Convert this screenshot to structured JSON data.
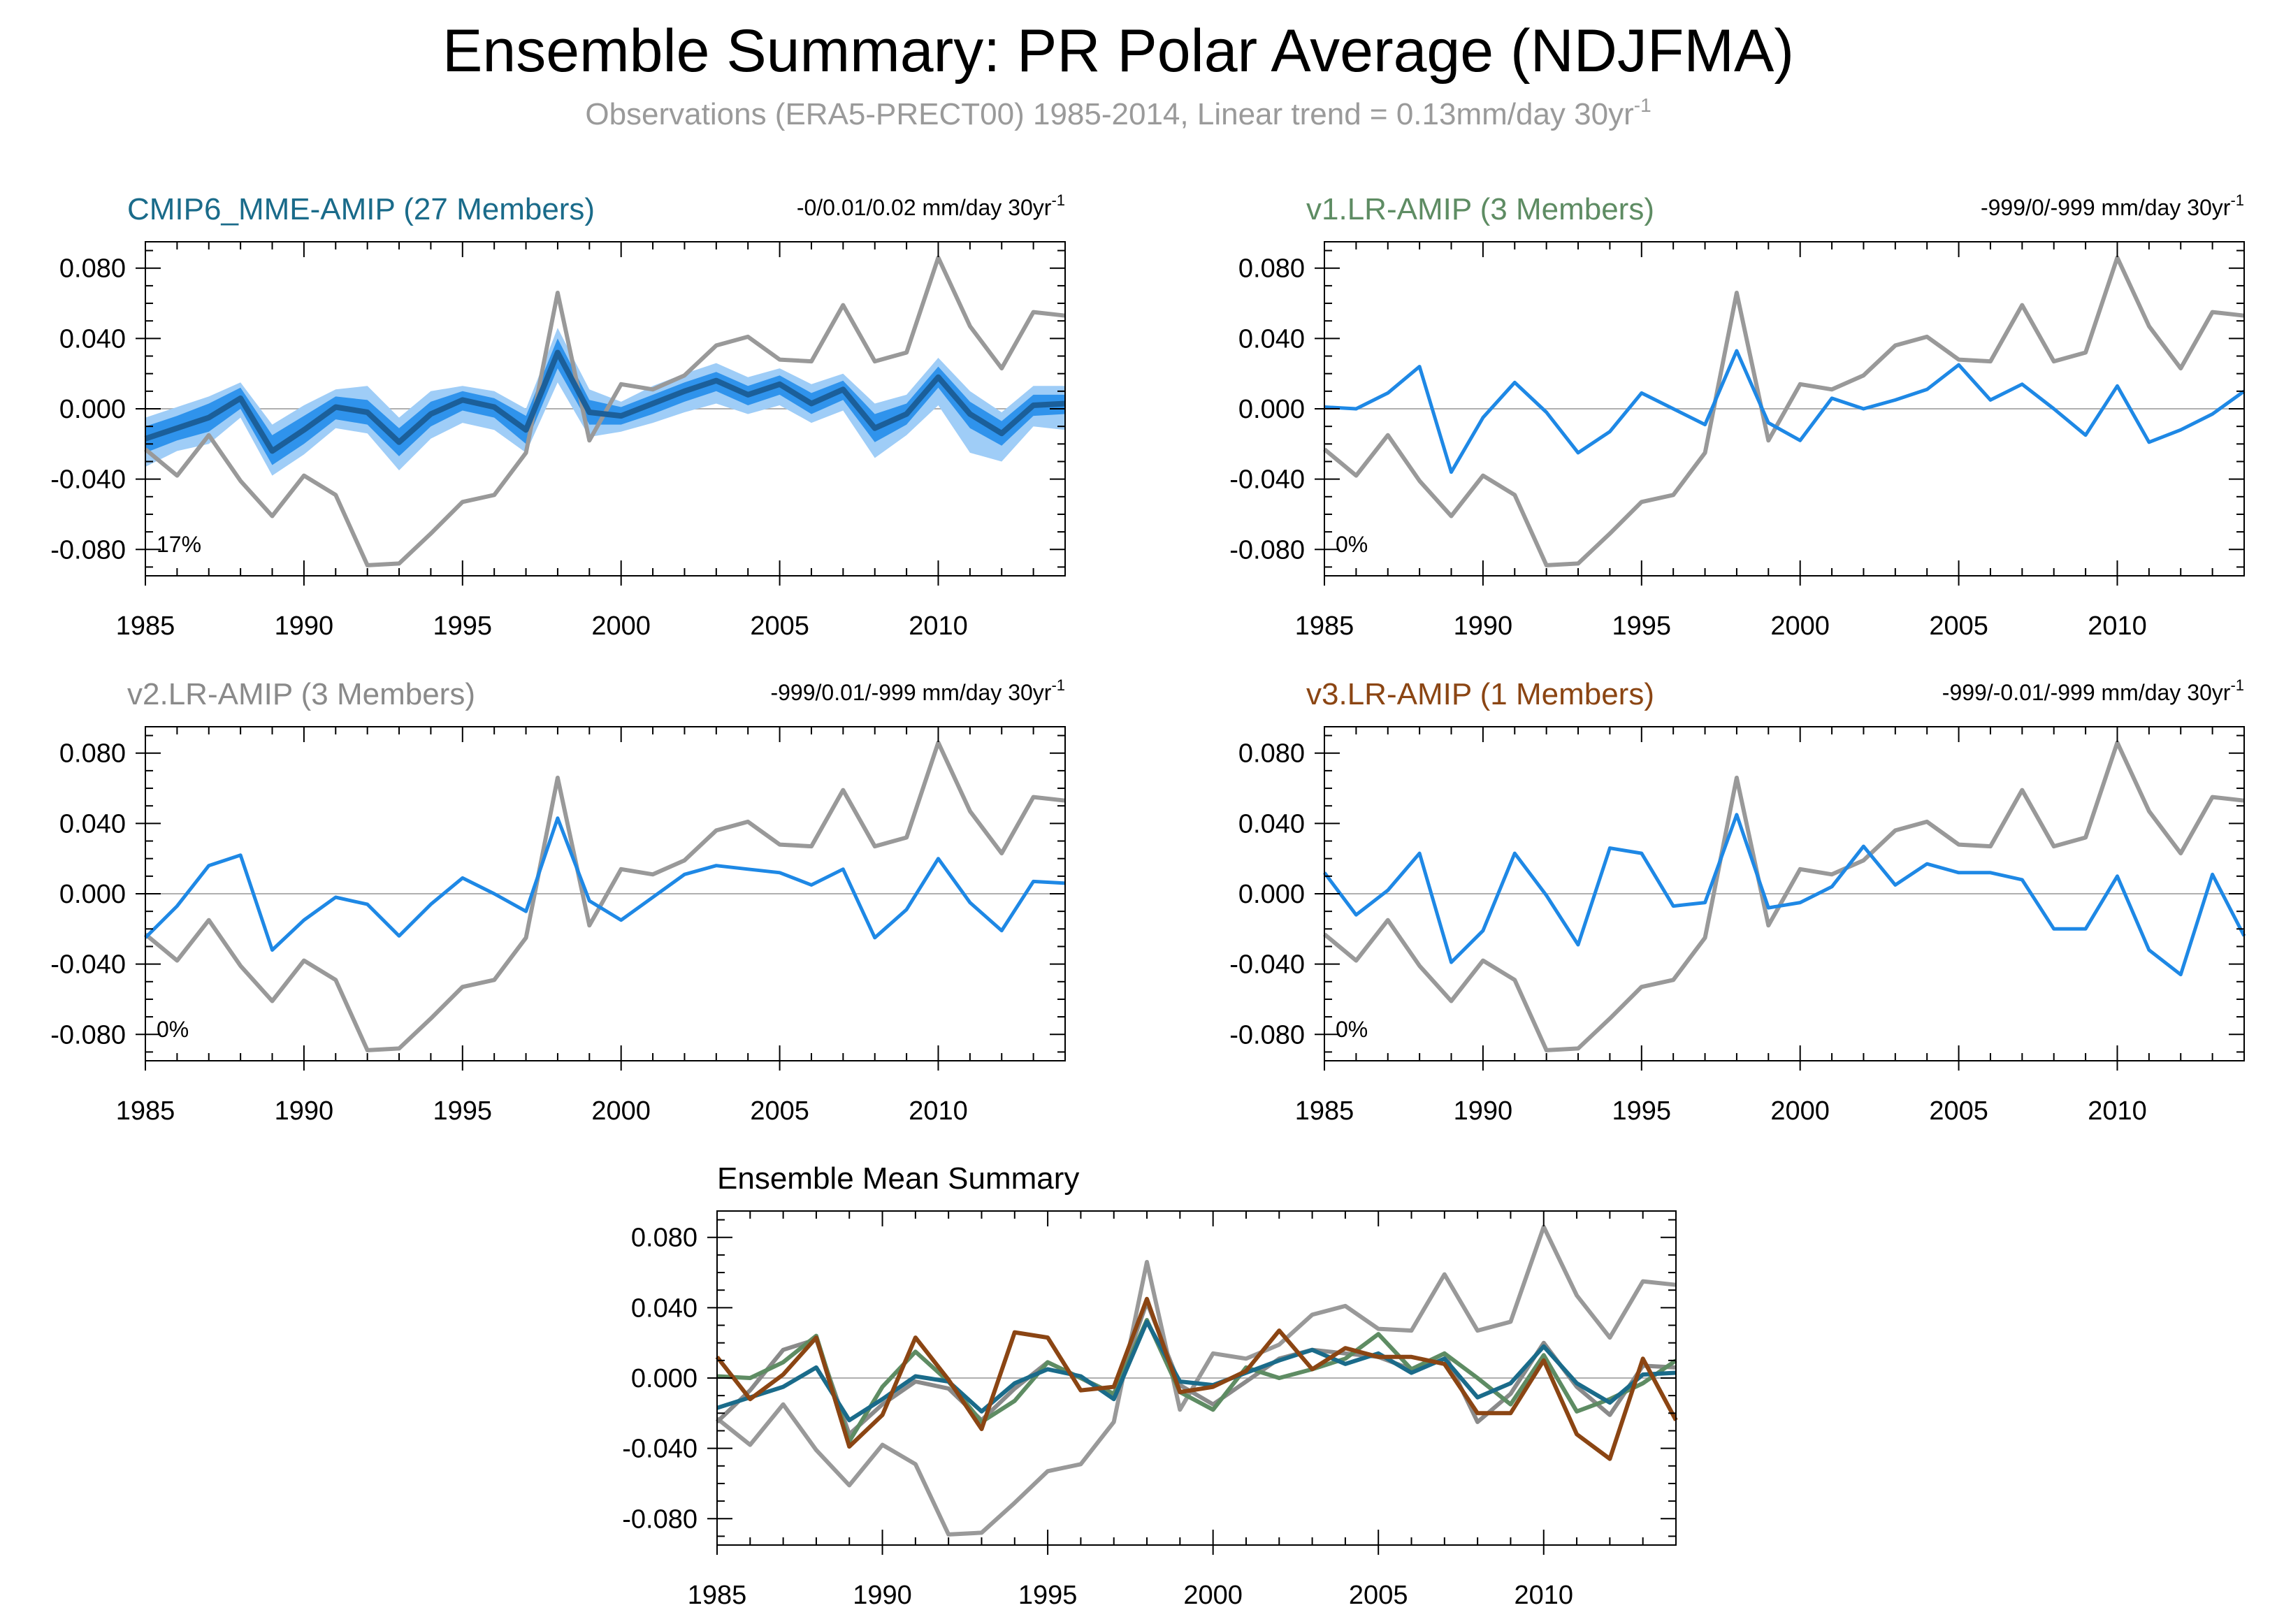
{
  "title": "Ensemble Summary: PR Polar Average (NDJFMA)",
  "subtitle": {
    "text": "Observations (ERA5-PRECT00) 1985-2014, Linear trend = 0.13mm/day 30yr",
    "sup": "-1"
  },
  "colors": {
    "observations": "#999999",
    "model_line": "#1e88e5",
    "band_outer": "#9fcdf7",
    "band_inner": "#2f93ec",
    "mme_mean": "#1b5f9a",
    "cmip6": "#1a6b8a",
    "v1": "#5e8c63",
    "v2": "#8a8a8a",
    "v3": "#8b4513",
    "frame": "#000000",
    "zero_line": "#b0b0b0"
  },
  "chart_data": [
    {
      "type": "line",
      "panel": "cmip6",
      "title": "CMIP6_MME-AMIP (27 Members)",
      "trend": "-0/0.01/0.02 mm/day 30yr",
      "trend_sup": "-1",
      "percent": "17%",
      "x": [
        1985,
        1986,
        1987,
        1988,
        1989,
        1990,
        1991,
        1992,
        1993,
        1994,
        1995,
        1996,
        1997,
        1998,
        1999,
        2000,
        2001,
        2002,
        2003,
        2004,
        2005,
        2006,
        2007,
        2008,
        2009,
        2010,
        2011,
        2012,
        2013,
        2014
      ],
      "xticks": [
        1985,
        1990,
        1995,
        2000,
        2005,
        2010
      ],
      "yticks": [
        0.08,
        0.04,
        0.0,
        -0.04,
        -0.08
      ],
      "ytick_labels": [
        "0.080",
        "0.040",
        "0.000",
        "-0.040",
        "-0.080"
      ],
      "xlim": [
        1985,
        2014
      ],
      "ylim": [
        -0.095,
        0.095
      ],
      "observations": [
        -0.023,
        -0.038,
        -0.015,
        -0.041,
        -0.061,
        -0.038,
        -0.049,
        -0.089,
        -0.088,
        -0.071,
        -0.053,
        -0.049,
        -0.025,
        0.066,
        -0.018,
        0.014,
        0.011,
        0.019,
        0.036,
        0.041,
        0.028,
        0.027,
        0.059,
        0.027,
        0.032,
        0.086,
        0.047,
        0.023,
        0.055,
        0.053
      ],
      "mean": [
        -0.017,
        -0.011,
        -0.005,
        0.006,
        -0.024,
        -0.012,
        0.001,
        -0.002,
        -0.019,
        -0.003,
        0.005,
        0.001,
        -0.012,
        0.032,
        -0.002,
        -0.004,
        0.003,
        0.01,
        0.016,
        0.008,
        0.014,
        0.003,
        0.011,
        -0.011,
        -0.003,
        0.018,
        -0.003,
        -0.014,
        0.002,
        0.003
      ],
      "band_inner": {
        "upper": [
          -0.01,
          -0.004,
          0.003,
          0.012,
          -0.015,
          -0.004,
          0.007,
          0.005,
          -0.011,
          0.004,
          0.01,
          0.006,
          -0.004,
          0.04,
          0.005,
          0.001,
          0.008,
          0.015,
          0.021,
          0.013,
          0.019,
          0.009,
          0.016,
          -0.003,
          0.003,
          0.024,
          0.004,
          -0.007,
          0.008,
          0.008
        ],
        "lower": [
          -0.025,
          -0.018,
          -0.013,
          0.0,
          -0.032,
          -0.02,
          -0.006,
          -0.009,
          -0.027,
          -0.01,
          -0.001,
          -0.005,
          -0.02,
          0.023,
          -0.009,
          -0.009,
          -0.003,
          0.004,
          0.01,
          0.002,
          0.008,
          -0.003,
          0.005,
          -0.019,
          -0.009,
          0.012,
          -0.011,
          -0.021,
          -0.004,
          -0.003
        ]
      },
      "band_outer": {
        "upper": [
          -0.005,
          0.001,
          0.007,
          0.015,
          -0.009,
          0.002,
          0.011,
          0.013,
          -0.005,
          0.01,
          0.013,
          0.01,
          0.0,
          0.046,
          0.011,
          0.004,
          0.013,
          0.02,
          0.026,
          0.018,
          0.023,
          0.014,
          0.02,
          0.003,
          0.008,
          0.029,
          0.01,
          -0.002,
          0.013,
          0.013
        ],
        "lower": [
          -0.033,
          -0.024,
          -0.02,
          -0.005,
          -0.038,
          -0.026,
          -0.011,
          -0.014,
          -0.035,
          -0.017,
          -0.008,
          -0.012,
          -0.025,
          0.015,
          -0.016,
          -0.013,
          -0.008,
          -0.002,
          0.003,
          -0.003,
          0.002,
          -0.008,
          -0.001,
          -0.028,
          -0.015,
          0.002,
          -0.025,
          -0.03,
          -0.01,
          -0.012
        ]
      }
    },
    {
      "type": "line",
      "panel": "v1",
      "title": "v1.LR-AMIP (3 Members)",
      "trend": "-999/0/-999 mm/day 30yr",
      "trend_sup": "-1",
      "percent": "0%",
      "x": [
        1985,
        1986,
        1987,
        1988,
        1989,
        1990,
        1991,
        1992,
        1993,
        1994,
        1995,
        1996,
        1997,
        1998,
        1999,
        2000,
        2001,
        2002,
        2003,
        2004,
        2005,
        2006,
        2007,
        2008,
        2009,
        2010,
        2011,
        2012,
        2013,
        2014
      ],
      "xticks": [
        1985,
        1990,
        1995,
        2000,
        2005,
        2010
      ],
      "yticks": [
        0.08,
        0.04,
        0.0,
        -0.04,
        -0.08
      ],
      "ytick_labels": [
        "0.080",
        "0.040",
        "0.000",
        "-0.040",
        "-0.080"
      ],
      "xlim": [
        1985,
        2014
      ],
      "ylim": [
        -0.095,
        0.095
      ],
      "observations": [
        -0.023,
        -0.038,
        -0.015,
        -0.041,
        -0.061,
        -0.038,
        -0.049,
        -0.089,
        -0.088,
        -0.071,
        -0.053,
        -0.049,
        -0.025,
        0.066,
        -0.018,
        0.014,
        0.011,
        0.019,
        0.036,
        0.041,
        0.028,
        0.027,
        0.059,
        0.027,
        0.032,
        0.086,
        0.047,
        0.023,
        0.055,
        0.053
      ],
      "model": [
        0.001,
        0.0,
        0.009,
        0.024,
        -0.036,
        -0.005,
        0.015,
        -0.002,
        -0.025,
        -0.013,
        0.009,
        0.0,
        -0.009,
        0.033,
        -0.008,
        -0.018,
        0.006,
        0.0,
        0.005,
        0.011,
        0.025,
        0.005,
        0.014,
        0.0,
        -0.015,
        0.013,
        -0.019,
        -0.012,
        -0.003,
        0.01
      ]
    },
    {
      "type": "line",
      "panel": "v2",
      "title": "v2.LR-AMIP (3 Members)",
      "trend": "-999/0.01/-999 mm/day 30yr",
      "trend_sup": "-1",
      "percent": "0%",
      "x": [
        1985,
        1986,
        1987,
        1988,
        1989,
        1990,
        1991,
        1992,
        1993,
        1994,
        1995,
        1996,
        1997,
        1998,
        1999,
        2000,
        2001,
        2002,
        2003,
        2004,
        2005,
        2006,
        2007,
        2008,
        2009,
        2010,
        2011,
        2012,
        2013,
        2014
      ],
      "xticks": [
        1985,
        1990,
        1995,
        2000,
        2005,
        2010
      ],
      "yticks": [
        0.08,
        0.04,
        0.0,
        -0.04,
        -0.08
      ],
      "ytick_labels": [
        "0.080",
        "0.040",
        "0.000",
        "-0.040",
        "-0.080"
      ],
      "xlim": [
        1985,
        2014
      ],
      "ylim": [
        -0.095,
        0.095
      ],
      "observations": [
        -0.023,
        -0.038,
        -0.015,
        -0.041,
        -0.061,
        -0.038,
        -0.049,
        -0.089,
        -0.088,
        -0.071,
        -0.053,
        -0.049,
        -0.025,
        0.066,
        -0.018,
        0.014,
        0.011,
        0.019,
        0.036,
        0.041,
        0.028,
        0.027,
        0.059,
        0.027,
        0.032,
        0.086,
        0.047,
        0.023,
        0.055,
        0.053
      ],
      "model": [
        -0.025,
        -0.007,
        0.016,
        0.022,
        -0.032,
        -0.015,
        -0.002,
        -0.006,
        -0.024,
        -0.006,
        0.009,
        0.0,
        -0.01,
        0.043,
        -0.004,
        -0.015,
        -0.002,
        0.011,
        0.016,
        0.014,
        0.012,
        0.005,
        0.014,
        -0.025,
        -0.009,
        0.02,
        -0.005,
        -0.021,
        0.007,
        0.006
      ]
    },
    {
      "type": "line",
      "panel": "v3",
      "title": "v3.LR-AMIP (1 Members)",
      "trend": "-999/-0.01/-999 mm/day 30yr",
      "trend_sup": "-1",
      "percent": "0%",
      "x": [
        1985,
        1986,
        1987,
        1988,
        1989,
        1990,
        1991,
        1992,
        1993,
        1994,
        1995,
        1996,
        1997,
        1998,
        1999,
        2000,
        2001,
        2002,
        2003,
        2004,
        2005,
        2006,
        2007,
        2008,
        2009,
        2010,
        2011,
        2012,
        2013,
        2014
      ],
      "xticks": [
        1985,
        1990,
        1995,
        2000,
        2005,
        2010
      ],
      "yticks": [
        0.08,
        0.04,
        0.0,
        -0.04,
        -0.08
      ],
      "ytick_labels": [
        "0.080",
        "0.040",
        "0.000",
        "-0.040",
        "-0.080"
      ],
      "xlim": [
        1985,
        2014
      ],
      "ylim": [
        -0.095,
        0.095
      ],
      "observations": [
        -0.023,
        -0.038,
        -0.015,
        -0.041,
        -0.061,
        -0.038,
        -0.049,
        -0.089,
        -0.088,
        -0.071,
        -0.053,
        -0.049,
        -0.025,
        0.066,
        -0.018,
        0.014,
        0.011,
        0.019,
        0.036,
        0.041,
        0.028,
        0.027,
        0.059,
        0.027,
        0.032,
        0.086,
        0.047,
        0.023,
        0.055,
        0.053
      ],
      "model": [
        0.012,
        -0.012,
        0.002,
        0.023,
        -0.039,
        -0.021,
        0.023,
        -0.001,
        -0.029,
        0.026,
        0.023,
        -0.007,
        -0.005,
        0.045,
        -0.008,
        -0.005,
        0.004,
        0.027,
        0.005,
        0.017,
        0.012,
        0.012,
        0.008,
        -0.02,
        -0.02,
        0.01,
        -0.032,
        -0.046,
        0.011,
        -0.024
      ]
    },
    {
      "type": "line",
      "panel": "summary",
      "title": "Ensemble Mean Summary",
      "x": [
        1985,
        1986,
        1987,
        1988,
        1989,
        1990,
        1991,
        1992,
        1993,
        1994,
        1995,
        1996,
        1997,
        1998,
        1999,
        2000,
        2001,
        2002,
        2003,
        2004,
        2005,
        2006,
        2007,
        2008,
        2009,
        2010,
        2011,
        2012,
        2013,
        2014
      ],
      "xticks": [
        1985,
        1990,
        1995,
        2000,
        2005,
        2010
      ],
      "yticks": [
        0.08,
        0.04,
        0.0,
        -0.04,
        -0.08
      ],
      "ytick_labels": [
        "0.080",
        "0.040",
        "0.000",
        "-0.040",
        "-0.080"
      ],
      "xlim": [
        1985,
        2014
      ],
      "ylim": [
        -0.095,
        0.095
      ],
      "series": [
        {
          "key": "observations",
          "values": [
            -0.023,
            -0.038,
            -0.015,
            -0.041,
            -0.061,
            -0.038,
            -0.049,
            -0.089,
            -0.088,
            -0.071,
            -0.053,
            -0.049,
            -0.025,
            0.066,
            -0.018,
            0.014,
            0.011,
            0.019,
            0.036,
            0.041,
            0.028,
            0.027,
            0.059,
            0.027,
            0.032,
            0.086,
            0.047,
            0.023,
            0.055,
            0.053
          ]
        },
        {
          "key": "v2",
          "values": [
            -0.025,
            -0.007,
            0.016,
            0.022,
            -0.032,
            -0.015,
            -0.002,
            -0.006,
            -0.024,
            -0.006,
            0.009,
            0.0,
            -0.01,
            0.043,
            -0.004,
            -0.015,
            -0.002,
            0.011,
            0.016,
            0.014,
            0.012,
            0.005,
            0.014,
            -0.025,
            -0.009,
            0.02,
            -0.005,
            -0.021,
            0.007,
            0.006
          ]
        },
        {
          "key": "v1",
          "values": [
            0.001,
            0.0,
            0.009,
            0.024,
            -0.036,
            -0.005,
            0.015,
            -0.002,
            -0.025,
            -0.013,
            0.009,
            0.0,
            -0.009,
            0.033,
            -0.008,
            -0.018,
            0.006,
            0.0,
            0.005,
            0.011,
            0.025,
            0.005,
            0.014,
            0.0,
            -0.015,
            0.013,
            -0.019,
            -0.012,
            -0.003,
            0.01
          ]
        },
        {
          "key": "cmip6",
          "values": [
            -0.017,
            -0.011,
            -0.005,
            0.006,
            -0.024,
            -0.012,
            0.001,
            -0.002,
            -0.019,
            -0.003,
            0.005,
            0.001,
            -0.012,
            0.032,
            -0.002,
            -0.004,
            0.003,
            0.01,
            0.016,
            0.008,
            0.014,
            0.003,
            0.011,
            -0.011,
            -0.003,
            0.018,
            -0.003,
            -0.014,
            0.002,
            0.003
          ]
        },
        {
          "key": "v3",
          "values": [
            0.012,
            -0.012,
            0.002,
            0.023,
            -0.039,
            -0.021,
            0.023,
            -0.001,
            -0.029,
            0.026,
            0.023,
            -0.007,
            -0.005,
            0.045,
            -0.008,
            -0.005,
            0.004,
            0.027,
            0.005,
            0.017,
            0.012,
            0.012,
            0.008,
            -0.02,
            -0.02,
            0.01,
            -0.032,
            -0.046,
            0.011,
            -0.024
          ]
        }
      ]
    }
  ]
}
